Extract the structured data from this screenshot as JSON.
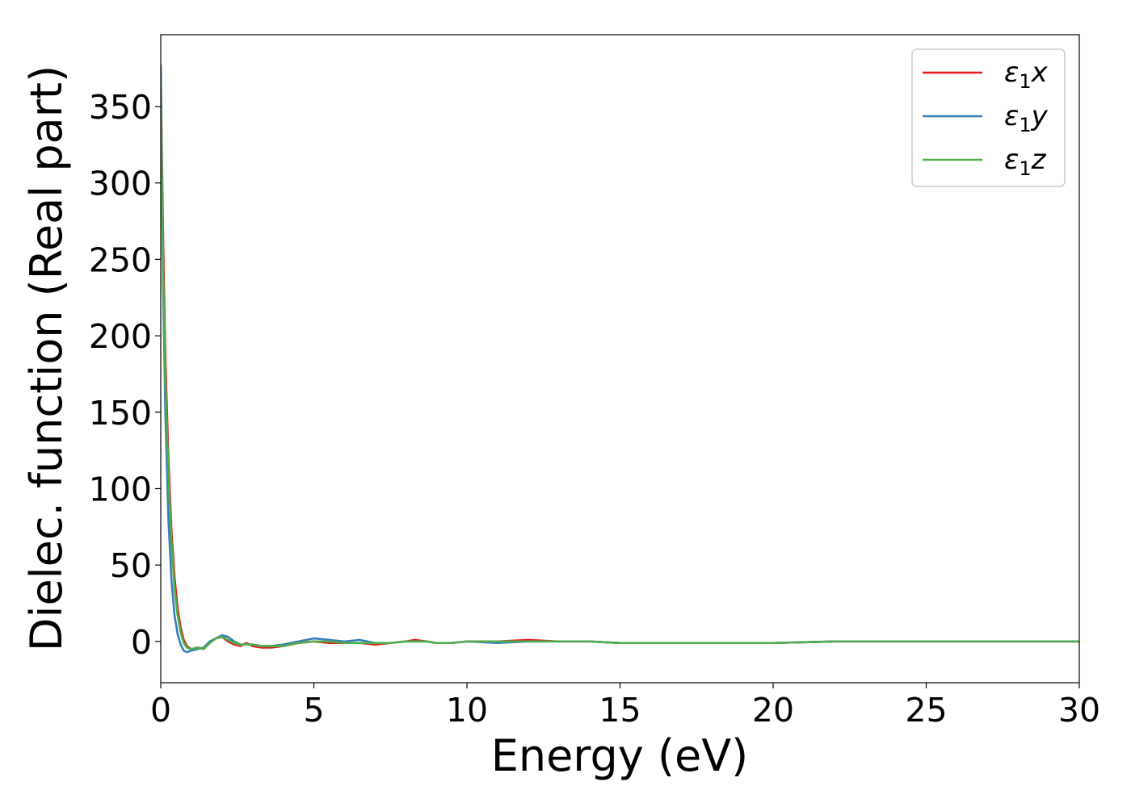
{
  "chart_data": {
    "type": "line",
    "title": "",
    "xlabel": "Energy (eV)",
    "ylabel": "Dielec. function (Real part)",
    "xlim": [
      0,
      30
    ],
    "ylim": [
      -27,
      397
    ],
    "xticks": [
      0,
      5,
      10,
      15,
      20,
      25,
      30
    ],
    "xtick_labels": [
      "0",
      "5",
      "10",
      "15",
      "20",
      "25",
      "30"
    ],
    "yticks": [
      0,
      50,
      100,
      150,
      200,
      250,
      300,
      350
    ],
    "ytick_labels": [
      "0",
      "50",
      "100",
      "150",
      "200",
      "250",
      "300",
      "350"
    ],
    "grid": false,
    "legend_position": "top-right",
    "series": [
      {
        "name": "ε1x",
        "legend_symbol": "ε",
        "legend_sub": "1",
        "legend_var": "x",
        "color": "#e41a1c",
        "x": [
          0.0,
          0.03,
          0.08,
          0.15,
          0.25,
          0.35,
          0.45,
          0.55,
          0.65,
          0.75,
          0.85,
          1.0,
          1.2,
          1.4,
          1.6,
          1.8,
          2.0,
          2.2,
          2.4,
          2.6,
          2.8,
          3.0,
          3.3,
          3.6,
          4.0,
          4.5,
          5.0,
          5.5,
          6.0,
          6.5,
          7.0,
          7.5,
          8.0,
          8.3,
          8.7,
          9.0,
          9.5,
          10.0,
          11.0,
          12.0,
          13.0,
          14.0,
          15.0,
          16.0,
          17.0,
          18.0,
          19.0,
          20.0,
          22.0,
          24.0,
          26.0,
          28.0,
          30.0
        ],
        "y": [
          372,
          330,
          260,
          185,
          120,
          72,
          42,
          22,
          9,
          1,
          -3,
          -5,
          -4,
          -5,
          -1,
          2,
          3,
          0,
          -2,
          -3,
          -1,
          -3,
          -4,
          -4,
          -3,
          -1,
          0,
          -1,
          -1,
          -1,
          -2,
          -1,
          0,
          1,
          0,
          -1,
          -1,
          0,
          0,
          1,
          0,
          0,
          -1,
          -1,
          -1,
          -1,
          -1,
          -1,
          0,
          0,
          0,
          0,
          0
        ]
      },
      {
        "name": "ε1y",
        "legend_symbol": "ε",
        "legend_sub": "1",
        "legend_var": "y",
        "color": "#377eb8",
        "x": [
          0.0,
          0.03,
          0.08,
          0.15,
          0.25,
          0.35,
          0.45,
          0.55,
          0.65,
          0.75,
          0.85,
          1.0,
          1.2,
          1.4,
          1.6,
          1.8,
          2.0,
          2.2,
          2.4,
          2.6,
          2.8,
          3.0,
          3.3,
          3.6,
          4.0,
          4.5,
          5.0,
          5.5,
          6.0,
          6.5,
          7.0,
          7.5,
          8.0,
          8.3,
          8.7,
          9.0,
          9.5,
          10.0,
          11.0,
          12.0,
          13.0,
          14.0,
          15.0,
          16.0,
          17.0,
          18.0,
          19.0,
          20.0,
          22.0,
          24.0,
          26.0,
          28.0,
          30.0
        ],
        "y": [
          377,
          320,
          230,
          150,
          80,
          40,
          17,
          5,
          -2,
          -6,
          -7,
          -6,
          -5,
          -4,
          0,
          2,
          4,
          3,
          0,
          -2,
          -2,
          -2,
          -3,
          -3,
          -2,
          0,
          2,
          1,
          0,
          1,
          -1,
          -1,
          0,
          0,
          0,
          -1,
          -1,
          0,
          -1,
          0,
          0,
          0,
          -1,
          -1,
          -1,
          -1,
          -1,
          -1,
          0,
          0,
          0,
          0,
          0
        ]
      },
      {
        "name": "ε1z",
        "legend_symbol": "ε",
        "legend_sub": "1",
        "legend_var": "z",
        "color": "#4daf4a",
        "x": [
          0.0,
          0.03,
          0.08,
          0.15,
          0.25,
          0.35,
          0.45,
          0.55,
          0.65,
          0.75,
          0.85,
          1.0,
          1.2,
          1.4,
          1.6,
          1.8,
          2.0,
          2.2,
          2.4,
          2.6,
          2.8,
          3.0,
          3.3,
          3.6,
          4.0,
          4.5,
          5.0,
          5.5,
          6.0,
          6.5,
          7.0,
          7.5,
          8.0,
          8.3,
          8.7,
          9.0,
          9.5,
          10.0,
          11.0,
          12.0,
          13.0,
          14.0,
          15.0,
          16.0,
          17.0,
          18.0,
          19.0,
          20.0,
          22.0,
          24.0,
          26.0,
          28.0,
          30.0
        ],
        "y": [
          365,
          310,
          240,
          170,
          110,
          65,
          35,
          17,
          6,
          -1,
          -4,
          -5,
          -4,
          -5,
          -1,
          2,
          3,
          1,
          -1,
          -2,
          -2,
          -2,
          -3,
          -3,
          -3,
          -1,
          0,
          0,
          -1,
          -1,
          -1,
          -1,
          0,
          0,
          0,
          -1,
          -1,
          0,
          0,
          0,
          0,
          0,
          -1,
          -1,
          -1,
          -1,
          -1,
          -1,
          0,
          0,
          0,
          0,
          0
        ]
      }
    ]
  }
}
